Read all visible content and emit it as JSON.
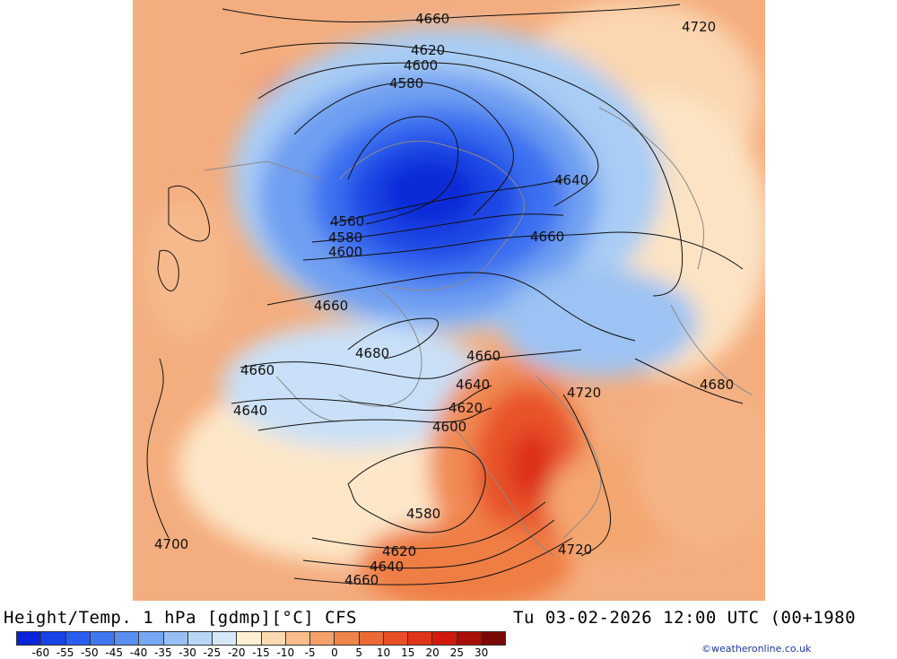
{
  "header": {
    "title": "Height/Temp. 1 hPa [gdmp][°C] CFS",
    "valid_time": "Tu 03-02-2026 12:00 UTC (00+1980"
  },
  "map": {
    "contour_labels": [
      "4660",
      "4720",
      "4620",
      "4600",
      "4580",
      "4640",
      "4560",
      "4580",
      "4600",
      "4660",
      "4660",
      "4680",
      "4660",
      "4680",
      "4660",
      "4640",
      "4720",
      "4620",
      "4640",
      "4600",
      "4580",
      "4700",
      "4620",
      "4640",
      "4660",
      "4720"
    ]
  },
  "legend": {
    "values": [
      "-60",
      "-55",
      "-50",
      "-45",
      "-40",
      "-35",
      "-30",
      "-25",
      "-20",
      "-15",
      "-10",
      "-5",
      "0",
      "5",
      "10",
      "15",
      "20",
      "25",
      "30"
    ],
    "colors": [
      "#0a22d8",
      "#1642e6",
      "#2a5ef0",
      "#3f76f2",
      "#5a8ef0",
      "#77a6f2",
      "#98bff4",
      "#b8d6f7",
      "#d5e8f8",
      "#fff0d4",
      "#fbd9b0",
      "#f8bd8b",
      "#f4a06a",
      "#f0844b",
      "#ec6934",
      "#e84f24",
      "#e03518",
      "#d21a0c",
      "#a80f07",
      "#7a0a05"
    ]
  },
  "credit": "©weatheronline.co.uk"
}
